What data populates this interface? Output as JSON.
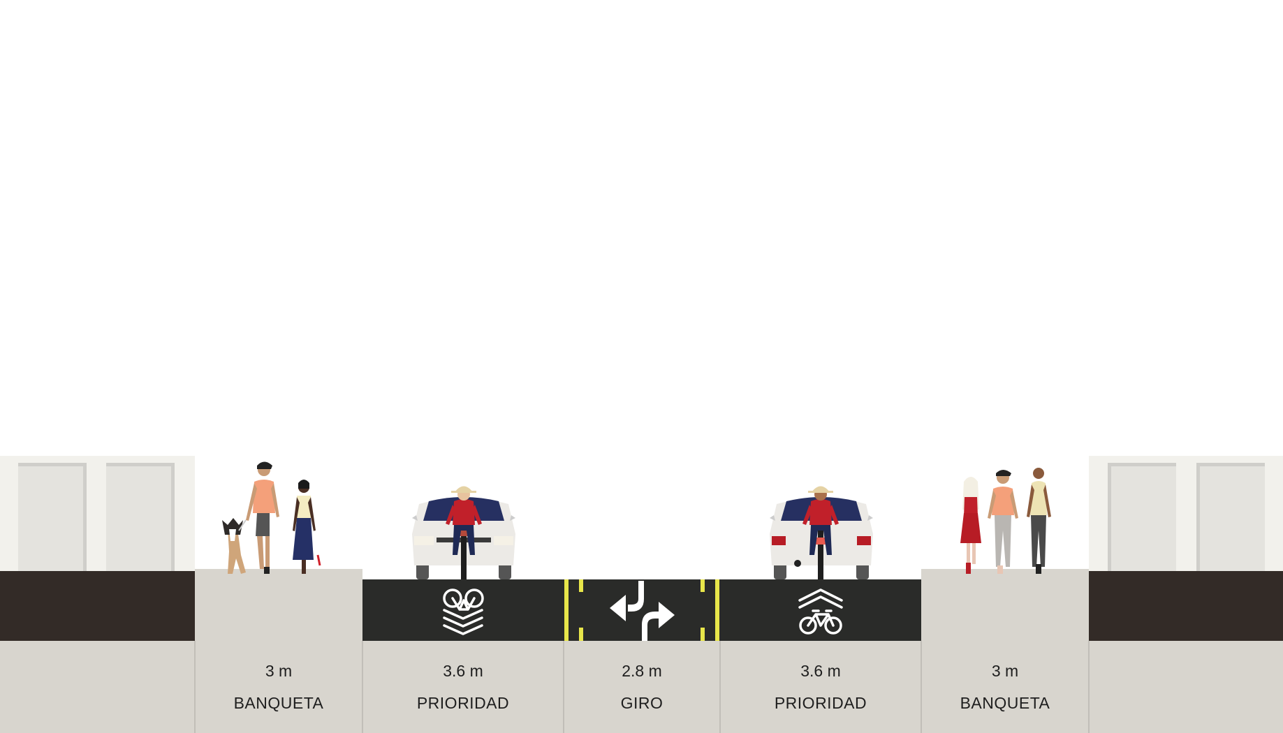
{
  "segments": [
    {
      "id": "banqueta-left",
      "width": "3 m",
      "name": "BANQUETA",
      "kind": "sidewalk"
    },
    {
      "id": "prioridad-left",
      "width": "3.6 m",
      "name": "PRIORIDAD",
      "kind": "bike-priority"
    },
    {
      "id": "giro",
      "width": "2.8 m",
      "name": "GIRO",
      "kind": "turn-lane"
    },
    {
      "id": "prioridad-right",
      "width": "3.6 m",
      "name": "PRIORIDAD",
      "kind": "sharrow"
    },
    {
      "id": "banqueta-right",
      "width": "3 m",
      "name": "BANQUETA",
      "kind": "sidewalk"
    }
  ],
  "colors": {
    "ground": "#d8d5ce",
    "asphalt": "#2a2b29",
    "dark_band": "#332b27",
    "building": "#f2f1ec",
    "door": "#e4e3de",
    "lane_line": "#e8e64a",
    "marking": "#ffffff"
  },
  "icons": [
    "bike-priority-icon",
    "turn-arrows-icon",
    "sharrow-icon"
  ]
}
